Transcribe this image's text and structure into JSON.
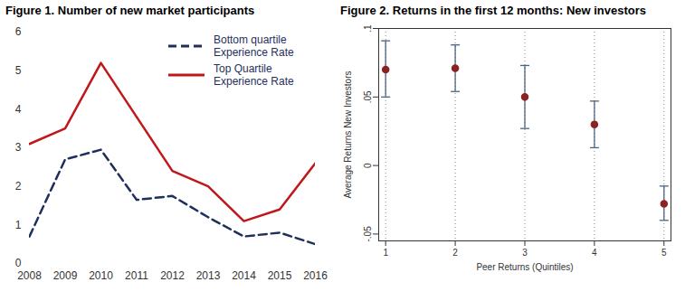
{
  "chart_data": [
    {
      "type": "line",
      "title": "Figure 1. Number of new market participants",
      "x": [
        2008,
        2009,
        2010,
        2011,
        2012,
        2013,
        2014,
        2015,
        2016
      ],
      "xlim": [
        2008,
        2016
      ],
      "xticks": [
        2008,
        2009,
        2010,
        2011,
        2012,
        2013,
        2014,
        2015,
        2016
      ],
      "ylim": [
        0,
        6
      ],
      "yticks": [
        0,
        1,
        2,
        3,
        4,
        5,
        6
      ],
      "legend": "top-right",
      "series": [
        {
          "name": "Bottom quartile Experience Rate",
          "color": "#1f2f5c",
          "line_style": "dashed",
          "values": [
            0.7,
            2.7,
            2.95,
            1.65,
            1.75,
            1.2,
            0.7,
            0.8,
            0.5
          ]
        },
        {
          "name": "Top Quartile Experience Rate",
          "color": "#c0171b",
          "line_style": "solid",
          "values": [
            3.1,
            3.5,
            5.2,
            3.8,
            2.4,
            2.0,
            1.1,
            1.4,
            2.6
          ]
        }
      ]
    },
    {
      "type": "scatter",
      "title": "Figure 2. Returns in the first 12 months: New investors",
      "x_label": "Peer Returns (Quintiles)",
      "y_label": "Average Returns New Investors",
      "x": [
        1,
        2,
        3,
        4,
        5
      ],
      "values": [
        0.07,
        0.071,
        0.05,
        0.03,
        -0.028
      ],
      "error_lower": [
        0.05,
        0.054,
        0.027,
        0.013,
        -0.04
      ],
      "error_upper": [
        0.091,
        0.088,
        0.073,
        0.047,
        -0.015
      ],
      "color": "#8b2323",
      "marker": "circle",
      "grid": "x",
      "xlim": [
        0.9,
        5.1
      ],
      "xticks": [
        1,
        2,
        3,
        4,
        5
      ],
      "ylim": [
        -0.055,
        0.1
      ],
      "yticks": [
        {
          "value": -0.05,
          "label": "-.05"
        },
        0,
        {
          "value": 0.05,
          "label": ".05"
        },
        {
          "value": 0.1,
          "label": ".1"
        }
      ]
    }
  ]
}
